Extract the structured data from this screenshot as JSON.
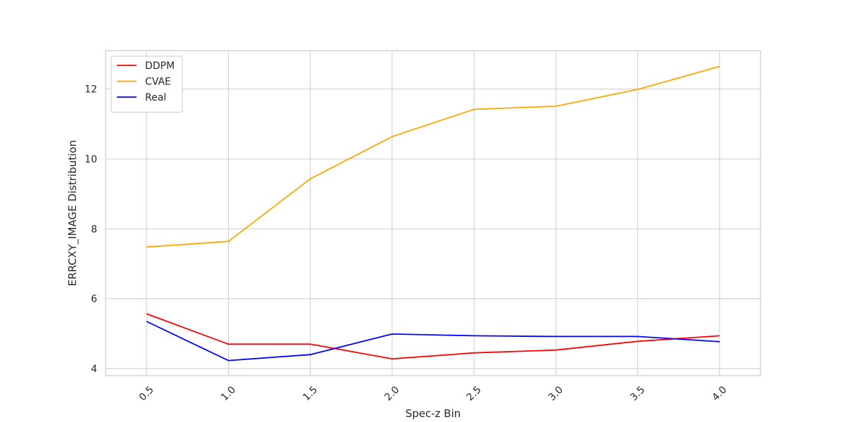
{
  "chart_data": {
    "type": "line",
    "title": "",
    "xlabel": "Spec-z Bin",
    "ylabel": "ERRCXY_IMAGE Distribution",
    "x": [
      0.5,
      1.0,
      1.5,
      2.0,
      2.5,
      3.0,
      3.5,
      4.0
    ],
    "x_tick_labels": [
      "0.5",
      "1.0",
      "1.5",
      "2.0",
      "2.5",
      "3.0",
      "3.5",
      "4.0"
    ],
    "y_ticks": [
      4,
      6,
      8,
      10,
      12
    ],
    "y_tick_labels": [
      "4",
      "6",
      "8",
      "10",
      "12"
    ],
    "xlim": [
      0.25,
      4.25
    ],
    "ylim": [
      3.8,
      13.1
    ],
    "grid": true,
    "legend_position": "top-left",
    "series": [
      {
        "name": "DDPM",
        "color": "#ff0000",
        "values": [
          5.57,
          4.7,
          4.7,
          4.28,
          4.45,
          4.53,
          4.78,
          4.94
        ]
      },
      {
        "name": "CVAE",
        "color": "#ffa500",
        "values": [
          7.48,
          7.64,
          9.43,
          10.64,
          11.42,
          11.51,
          11.99,
          12.65
        ]
      },
      {
        "name": "Real",
        "color": "#0000ff",
        "values": [
          5.35,
          4.23,
          4.4,
          4.99,
          4.94,
          4.92,
          4.92,
          4.77
        ]
      }
    ]
  }
}
